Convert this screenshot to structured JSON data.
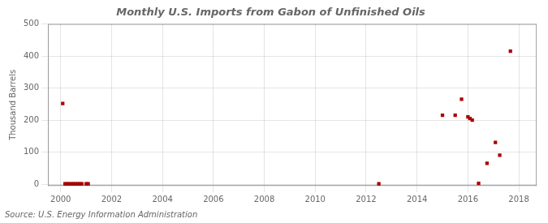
{
  "chart_data": {
    "type": "scatter",
    "title": "Monthly U.S. Imports from Gabon of Unfinished Oils",
    "ylabel": "Thousand Barrels",
    "annotation": "Source: U.S. Energy Information Administration",
    "x": [
      2000.08,
      2000.17,
      2000.25,
      2000.33,
      2000.42,
      2000.5,
      2000.58,
      2000.67,
      2000.75,
      2000.83,
      2001.0,
      2001.08,
      2012.5,
      2015.0,
      2015.5,
      2015.75,
      2016.0,
      2016.08,
      2016.17,
      2016.42,
      2016.75,
      2017.08,
      2017.25,
      2017.67
    ],
    "values": [
      252,
      1,
      1,
      1,
      1,
      1,
      1,
      1,
      1,
      1,
      1,
      1,
      1,
      215,
      215,
      265,
      210,
      205,
      200,
      2,
      65,
      130,
      90,
      415
    ],
    "color": "#aa0000",
    "marker": "square",
    "xlim": [
      1999.5,
      2018.7
    ],
    "ylim": [
      -5,
      500
    ],
    "xticks": [
      2000,
      2002,
      2004,
      2006,
      2008,
      2010,
      2012,
      2014,
      2016,
      2018
    ],
    "yticks": [
      0,
      100,
      200,
      300,
      400,
      500
    ],
    "grid": true
  }
}
